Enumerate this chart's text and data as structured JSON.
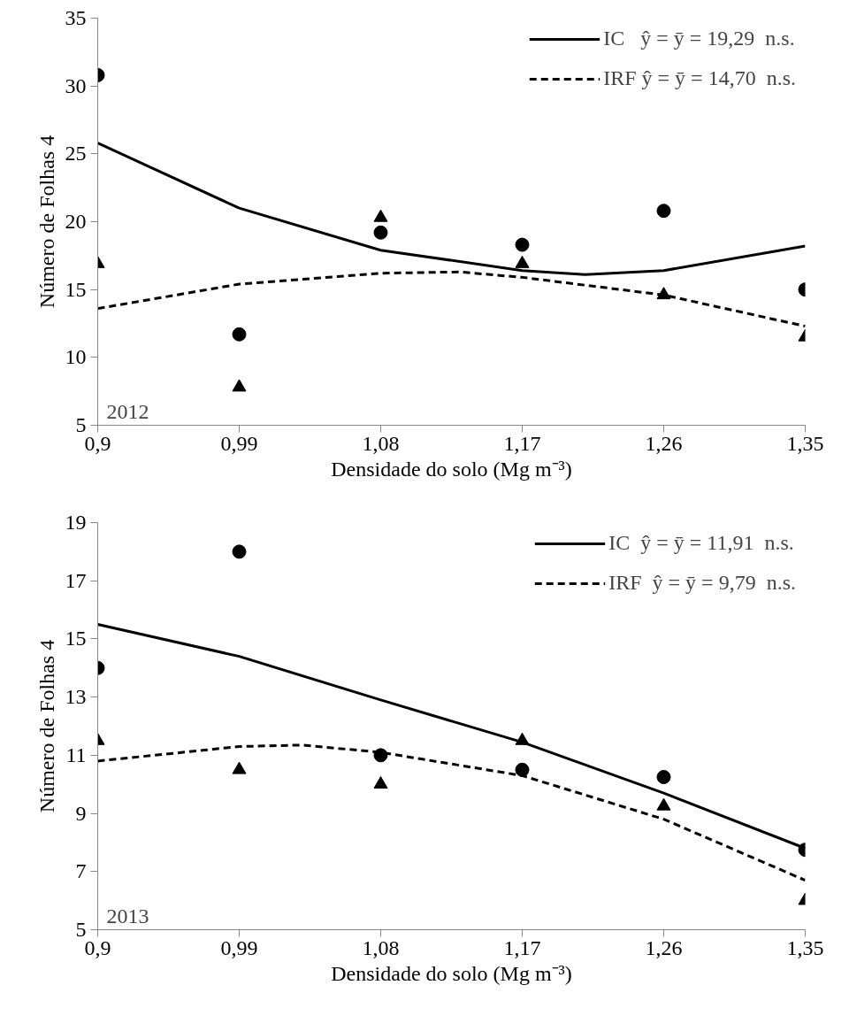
{
  "chart_data": [
    {
      "type": "scatter",
      "xlabel": "Densidade do solo (Mg m⁻³)",
      "ylabel": "Número de Folhas 4",
      "annotations": [
        "2012"
      ],
      "xlim": [
        0.9,
        1.35
      ],
      "ylim": [
        5,
        35
      ],
      "xticks": [
        {
          "value": 0.9,
          "label": "0,9"
        },
        {
          "value": 0.99,
          "label": "0,99"
        },
        {
          "value": 1.08,
          "label": "1,08"
        },
        {
          "value": 1.17,
          "label": "1,17"
        },
        {
          "value": 1.26,
          "label": "1,26"
        },
        {
          "value": 1.35,
          "label": "1,35"
        }
      ],
      "yticks": [
        5,
        10,
        15,
        20,
        25,
        30,
        35
      ],
      "grid": false,
      "legend": "top right",
      "series": [
        {
          "marker": "circle",
          "color": "#000000",
          "x": [
            0.9,
            0.99,
            1.08,
            1.17,
            1.26,
            1.35
          ],
          "values": [
            30.8,
            11.7,
            19.2,
            18.3,
            20.8,
            15.0
          ]
        },
        {
          "marker": "triangle",
          "color": "#000000",
          "x": [
            0.9,
            0.99,
            1.08,
            1.17,
            1.26,
            1.35
          ],
          "values": [
            16.9,
            7.8,
            20.3,
            16.9,
            14.6,
            11.5
          ]
        },
        {
          "type": "line",
          "name": "IC   ŷ = ȳ = 19,29  n.s.",
          "line_style": "solid",
          "color": "#000000",
          "x": [
            0.9,
            0.99,
            1.08,
            1.17,
            1.21,
            1.26,
            1.35
          ],
          "values": [
            25.8,
            21.0,
            17.9,
            16.4,
            16.1,
            16.4,
            18.2
          ]
        },
        {
          "type": "line",
          "name": "IRF ŷ = ȳ = 14,70  n.s.",
          "line_style": "dashed",
          "color": "#000000",
          "x": [
            0.9,
            0.99,
            1.08,
            1.13,
            1.17,
            1.26,
            1.35
          ],
          "values": [
            13.6,
            15.4,
            16.2,
            16.3,
            15.9,
            14.6,
            12.3
          ]
        }
      ]
    },
    {
      "type": "scatter",
      "xlabel": "Densidade do solo (Mg m⁻³)",
      "ylabel": "Número de Folhas 4",
      "annotations": [
        "2013"
      ],
      "xlim": [
        0.9,
        1.35
      ],
      "ylim": [
        5,
        19
      ],
      "xticks": [
        {
          "value": 0.9,
          "label": "0,9"
        },
        {
          "value": 0.99,
          "label": "0,99"
        },
        {
          "value": 1.08,
          "label": "1,08"
        },
        {
          "value": 1.17,
          "label": "1,17"
        },
        {
          "value": 1.26,
          "label": "1,26"
        },
        {
          "value": 1.35,
          "label": "1,35"
        }
      ],
      "yticks": [
        5,
        7,
        9,
        11,
        13,
        15,
        17,
        19
      ],
      "grid": false,
      "legend": "top right",
      "series": [
        {
          "marker": "circle",
          "color": "#000000",
          "x": [
            0.9,
            0.99,
            1.08,
            1.17,
            1.26,
            1.35
          ],
          "values": [
            14.0,
            18.0,
            11.0,
            10.5,
            10.25,
            7.75
          ]
        },
        {
          "marker": "triangle",
          "color": "#000000",
          "x": [
            0.9,
            0.99,
            1.08,
            1.17,
            1.26,
            1.35
          ],
          "values": [
            11.5,
            10.5,
            10.0,
            11.5,
            9.25,
            6.0
          ]
        },
        {
          "type": "line",
          "name": "IC  ŷ = ȳ = 11,91  n.s.",
          "line_style": "solid",
          "color": "#000000",
          "x": [
            0.9,
            0.99,
            1.08,
            1.17,
            1.26,
            1.35
          ],
          "values": [
            15.5,
            14.4,
            12.9,
            11.45,
            9.7,
            7.8
          ]
        },
        {
          "type": "line",
          "name": "IRF  ŷ = ȳ = 9,79  n.s.",
          "line_style": "dashed",
          "color": "#000000",
          "x": [
            0.9,
            0.99,
            1.03,
            1.08,
            1.17,
            1.26,
            1.35
          ],
          "values": [
            10.8,
            11.3,
            11.35,
            11.1,
            10.3,
            8.8,
            6.7
          ]
        }
      ]
    }
  ]
}
